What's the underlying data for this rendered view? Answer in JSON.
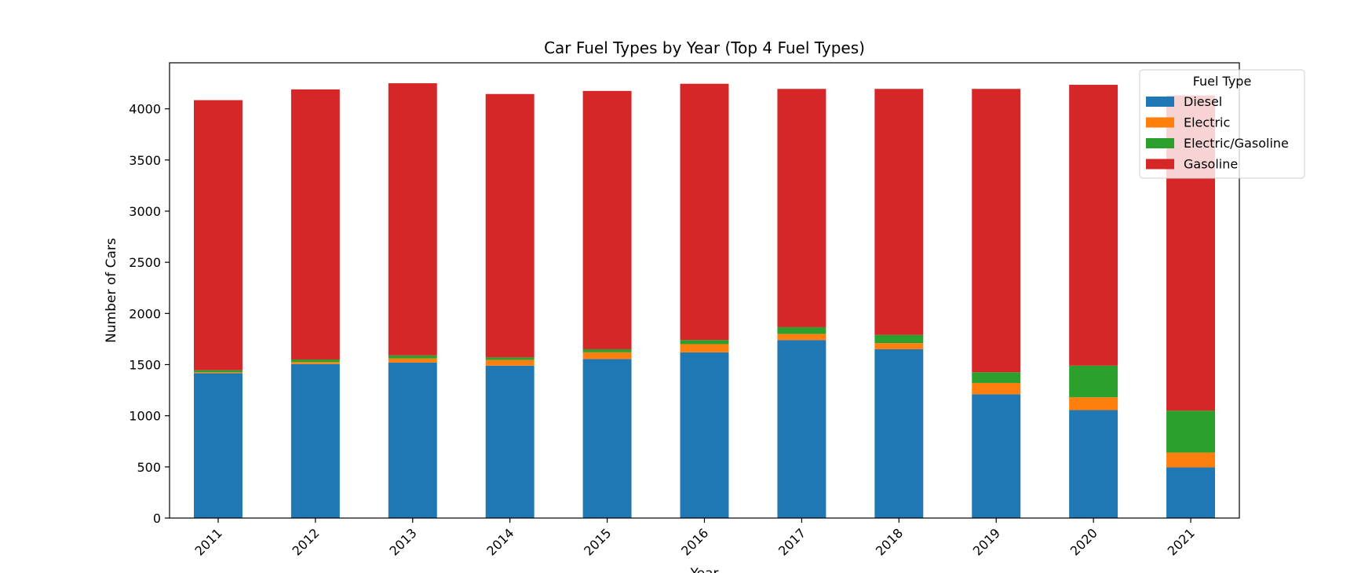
{
  "chart_data": {
    "type": "bar",
    "stacked": true,
    "title": "Car Fuel Types by Year (Top 4 Fuel Types)",
    "xlabel": "Year",
    "ylabel": "Number of Cars",
    "categories": [
      "2011",
      "2012",
      "2013",
      "2014",
      "2015",
      "2016",
      "2017",
      "2018",
      "2019",
      "2020",
      "2021"
    ],
    "yticks": [
      0,
      500,
      1000,
      1500,
      2000,
      2500,
      3000,
      3500,
      4000
    ],
    "ylim": [
      0,
      4450
    ],
    "grid": false,
    "legend": {
      "title": "Fuel Type",
      "placement": "top-right"
    },
    "series": [
      {
        "name": "Diesel",
        "color": "#1f77b4",
        "values": [
          1415,
          1505,
          1520,
          1490,
          1555,
          1620,
          1740,
          1650,
          1210,
          1055,
          495
        ]
      },
      {
        "name": "Electric",
        "color": "#ff7f0e",
        "values": [
          10,
          20,
          40,
          55,
          65,
          80,
          60,
          60,
          110,
          125,
          145
        ]
      },
      {
        "name": "Electric/Gasoline",
        "color": "#2ca02c",
        "values": [
          20,
          25,
          30,
          25,
          30,
          40,
          65,
          80,
          105,
          310,
          410
        ]
      },
      {
        "name": "Gasoline",
        "color": "#d62728",
        "values": [
          2640,
          2640,
          2660,
          2575,
          2525,
          2505,
          2330,
          2405,
          2770,
          2745,
          3080
        ]
      }
    ]
  }
}
